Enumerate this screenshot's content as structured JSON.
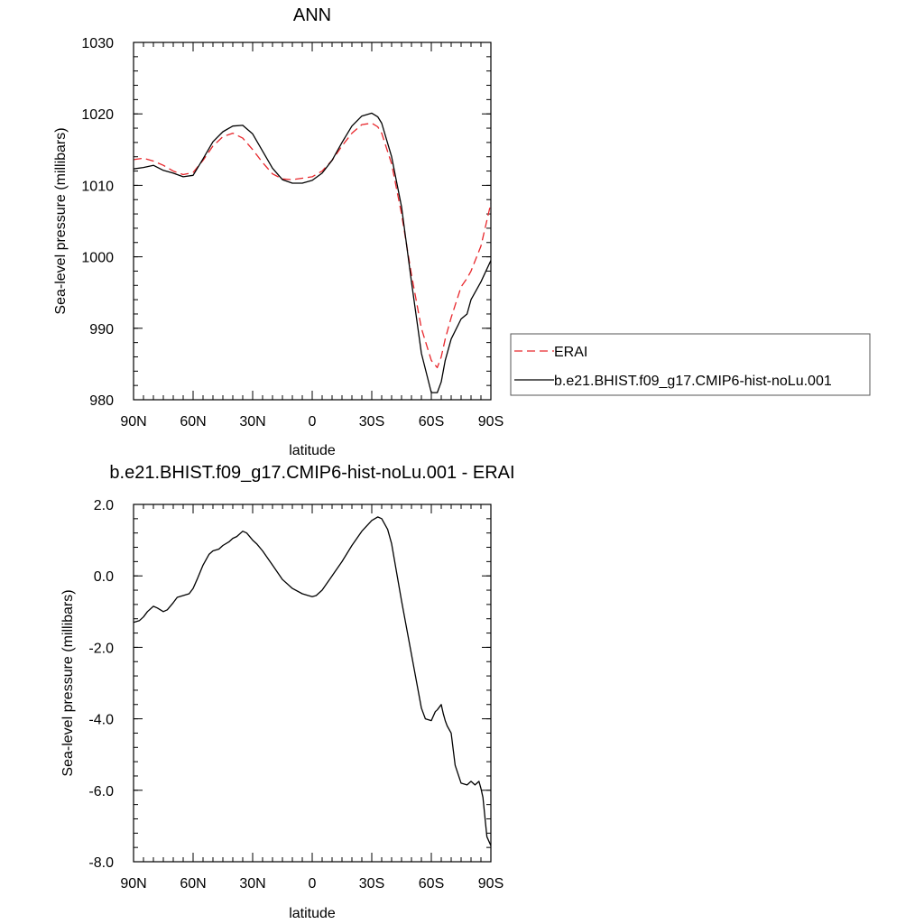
{
  "chart_data": [
    {
      "type": "line",
      "title": "ANN",
      "xlabel": "latitude",
      "ylabel": "Sea-level pressure (millibars)",
      "xlim": [
        90,
        -90
      ],
      "ylim": [
        980,
        1030
      ],
      "xticks": [
        90,
        60,
        30,
        0,
        -30,
        -60,
        -90
      ],
      "xtick_labels": [
        "90N",
        "60N",
        "30N",
        "0",
        "30S",
        "60S",
        "90S"
      ],
      "yticks": [
        980,
        990,
        1000,
        1010,
        1020,
        1030
      ],
      "ytick_labels": [
        "980",
        "990",
        "1000",
        "1010",
        "1020",
        "1030"
      ],
      "grid": false,
      "legend_position": "right",
      "x": [
        90,
        85,
        80,
        75,
        70,
        65,
        60,
        55,
        50,
        45,
        40,
        35,
        30,
        25,
        20,
        15,
        10,
        5,
        0,
        -5,
        -10,
        -15,
        -20,
        -25,
        -30,
        -33,
        -35,
        -40,
        -45,
        -50,
        -55,
        -60,
        -63,
        -65,
        -67,
        -70,
        -75,
        -78,
        -80,
        -85,
        -90
      ],
      "series": [
        {
          "name": "ERAI",
          "color": "#e8262b",
          "dash": "dashed",
          "values": [
            1013.6,
            1013.8,
            1013.4,
            1012.8,
            1012.0,
            1011.5,
            1011.8,
            1013.5,
            1015.5,
            1016.8,
            1017.3,
            1016.6,
            1015.0,
            1013.2,
            1011.6,
            1010.9,
            1010.8,
            1011.0,
            1011.2,
            1012.0,
            1013.5,
            1015.5,
            1017.3,
            1018.5,
            1018.7,
            1018.2,
            1017.3,
            1013.0,
            1006.0,
            997.5,
            990.0,
            985.5,
            984.5,
            986.0,
            988.5,
            991.5,
            995.8,
            997.0,
            998.0,
            1001.5,
            1007.5
          ]
        },
        {
          "name": "b.e21.BHIST.f09_g17.CMIP6-hist-noLu.001",
          "color": "#000000",
          "dash": "solid",
          "values": [
            1012.3,
            1012.5,
            1012.8,
            1012.1,
            1011.7,
            1011.2,
            1011.4,
            1013.7,
            1016.1,
            1017.5,
            1018.3,
            1018.4,
            1017.2,
            1014.8,
            1012.4,
            1010.8,
            1010.3,
            1010.3,
            1010.7,
            1011.7,
            1013.5,
            1016.0,
            1018.3,
            1019.7,
            1020.1,
            1019.6,
            1018.7,
            1014.0,
            1007.0,
            996.5,
            986.5,
            981.0,
            981.0,
            982.5,
            985.5,
            988.5,
            991.3,
            992.0,
            994.0,
            996.5,
            999.5
          ]
        }
      ]
    },
    {
      "type": "line",
      "title": "b.e21.BHIST.f09_g17.CMIP6-hist-noLu.001 - ERAI",
      "xlabel": "latitude",
      "ylabel": "Sea-level pressure (millibars)",
      "xlim": [
        90,
        -90
      ],
      "ylim": [
        -8,
        2
      ],
      "xticks": [
        90,
        60,
        30,
        0,
        -30,
        -60,
        -90
      ],
      "xtick_labels": [
        "90N",
        "60N",
        "30N",
        "0",
        "30S",
        "60S",
        "90S"
      ],
      "yticks": [
        -8,
        -6,
        -4,
        -2,
        0,
        2
      ],
      "ytick_labels": [
        "-8.0",
        "-6.0",
        "-4.0",
        "-2.0",
        "0.0",
        "2.0"
      ],
      "grid": false,
      "x": [
        90,
        87,
        85,
        83,
        80,
        78,
        75,
        73,
        70,
        68,
        65,
        62,
        60,
        58,
        55,
        52,
        50,
        47,
        45,
        42,
        40,
        38,
        35,
        33,
        30,
        28,
        25,
        20,
        15,
        10,
        5,
        2,
        0,
        -2,
        -5,
        -10,
        -15,
        -20,
        -25,
        -30,
        -33,
        -35,
        -38,
        -40,
        -45,
        -50,
        -55,
        -57,
        -60,
        -62,
        -63,
        -65,
        -66,
        -67,
        -68,
        -70,
        -72,
        -75,
        -78,
        -80,
        -82,
        -84,
        -85,
        -86,
        -88,
        -90
      ],
      "series": [
        {
          "color": "#000000",
          "values": [
            -1.3,
            -1.25,
            -1.15,
            -1.0,
            -0.85,
            -0.9,
            -1.0,
            -0.95,
            -0.75,
            -0.6,
            -0.55,
            -0.5,
            -0.35,
            -0.1,
            0.3,
            0.6,
            0.7,
            0.75,
            0.85,
            0.95,
            1.05,
            1.1,
            1.25,
            1.2,
            1.0,
            0.9,
            0.7,
            0.3,
            -0.1,
            -0.35,
            -0.5,
            -0.55,
            -0.58,
            -0.55,
            -0.4,
            0.0,
            0.4,
            0.85,
            1.25,
            1.55,
            1.65,
            1.6,
            1.3,
            0.9,
            -0.7,
            -2.2,
            -3.7,
            -4.0,
            -4.05,
            -3.8,
            -3.75,
            -3.6,
            -3.85,
            -4.05,
            -4.2,
            -4.4,
            -5.3,
            -5.8,
            -5.85,
            -5.75,
            -5.85,
            -5.75,
            -5.95,
            -6.2,
            -7.3,
            -7.55
          ]
        }
      ]
    }
  ]
}
